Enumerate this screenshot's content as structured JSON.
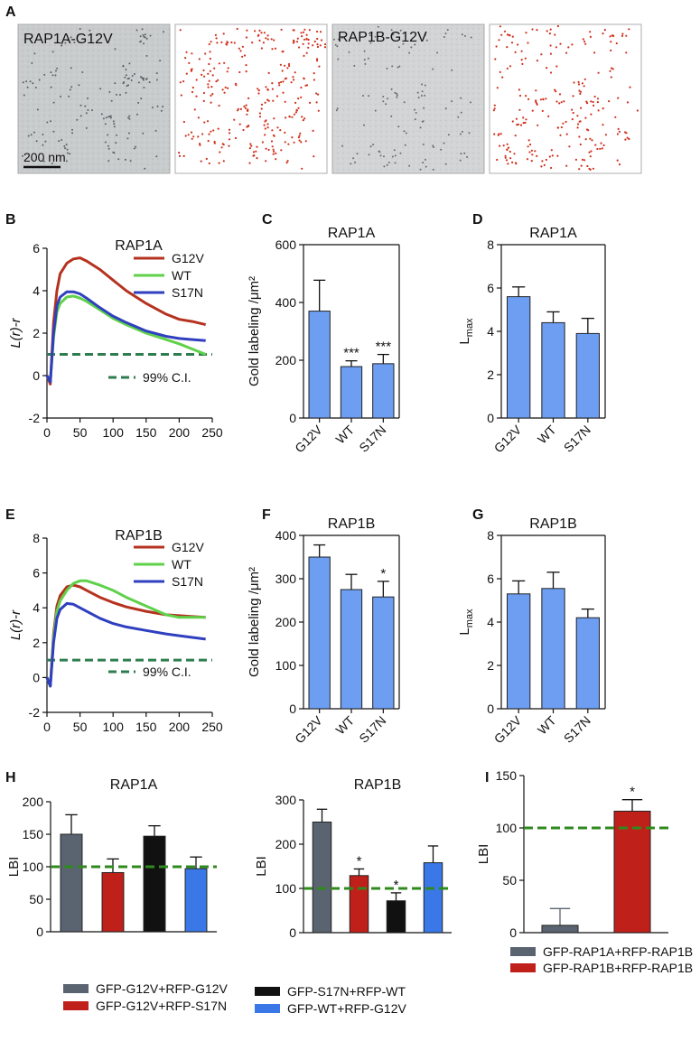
{
  "panels": {
    "A": {
      "letter": "A",
      "image_labels": [
        "RAP1A-G12V",
        "RAP1B-G12V"
      ],
      "scale_bar": "200 nm"
    },
    "B": {
      "letter": "B"
    },
    "C": {
      "letter": "C"
    },
    "D": {
      "letter": "D"
    },
    "E": {
      "letter": "E"
    },
    "F": {
      "letter": "F"
    },
    "G": {
      "letter": "G"
    },
    "H": {
      "letter": "H"
    },
    "I": {
      "letter": "I"
    }
  },
  "colors": {
    "G12V": "#b5321f",
    "WT": "#5fd14a",
    "S17N": "#2f3fbf",
    "ci": "#2e7d4f",
    "bar_blue": "#6d9ef2",
    "gray": "#5a6470",
    "red": "#c0201a",
    "black": "#111111",
    "blue": "#3a78e8",
    "green_dash": "#2f8a1e"
  },
  "chart_data": [
    {
      "id": "B",
      "type": "line",
      "title": "RAP1A",
      "xlabel": "",
      "ylabel": "L(r)-r",
      "xlim": [
        0,
        250
      ],
      "ylim": [
        -2,
        6
      ],
      "xticks": [
        "0",
        "50",
        "100",
        "150",
        "200",
        "250"
      ],
      "yticks": [
        "-2",
        "0",
        "2",
        "4",
        "6"
      ],
      "series": [
        {
          "name": "G12V",
          "x": [
            0,
            5,
            10,
            15,
            20,
            30,
            40,
            50,
            60,
            80,
            100,
            120,
            150,
            180,
            200,
            220,
            240
          ],
          "y": [
            0,
            -0.4,
            2.5,
            4.0,
            4.8,
            5.3,
            5.5,
            5.55,
            5.4,
            5.0,
            4.5,
            4.0,
            3.4,
            2.9,
            2.65,
            2.55,
            2.4
          ]
        },
        {
          "name": "WT",
          "x": [
            0,
            5,
            10,
            15,
            20,
            30,
            40,
            50,
            60,
            80,
            100,
            120,
            150,
            180,
            200,
            220,
            240
          ],
          "y": [
            0,
            -0.3,
            1.8,
            3.0,
            3.4,
            3.7,
            3.75,
            3.65,
            3.5,
            3.1,
            2.7,
            2.4,
            2.0,
            1.7,
            1.5,
            1.25,
            1.0
          ]
        },
        {
          "name": "S17N",
          "x": [
            0,
            5,
            10,
            15,
            20,
            30,
            40,
            50,
            60,
            80,
            100,
            120,
            150,
            180,
            200,
            220,
            240
          ],
          "y": [
            0,
            -0.3,
            2.0,
            3.3,
            3.7,
            3.95,
            3.95,
            3.85,
            3.65,
            3.2,
            2.8,
            2.5,
            2.1,
            1.85,
            1.75,
            1.7,
            1.65
          ]
        }
      ],
      "ci_level": 1,
      "ci_label": "99% C.I."
    },
    {
      "id": "C",
      "type": "bar",
      "title": "RAP1A",
      "ylabel": "Gold labeling /μm²",
      "ylim": [
        0,
        600
      ],
      "yticks": [
        "0",
        "200",
        "400",
        "600"
      ],
      "categories": [
        "G12V",
        "WT",
        "S17N"
      ],
      "values": [
        370,
        178,
        188
      ],
      "errors": [
        107,
        20,
        32
      ],
      "annotations": [
        "",
        "***",
        "***"
      ]
    },
    {
      "id": "D",
      "type": "bar",
      "title": "RAP1A",
      "ylabel": "Lmax",
      "ylim": [
        0,
        8
      ],
      "yticks": [
        "0",
        "2",
        "4",
        "6",
        "8"
      ],
      "categories": [
        "G12V",
        "WT",
        "S17N"
      ],
      "values": [
        5.6,
        4.4,
        3.9
      ],
      "errors": [
        0.45,
        0.5,
        0.7
      ],
      "annotations": [
        "",
        "",
        ""
      ]
    },
    {
      "id": "E",
      "type": "line",
      "title": "RAP1B",
      "xlabel": "",
      "ylabel": "L(r)-r",
      "xlim": [
        0,
        250
      ],
      "ylim": [
        -2,
        8
      ],
      "xticks": [
        "0",
        "50",
        "100",
        "150",
        "200",
        "250"
      ],
      "yticks": [
        "-2",
        "0",
        "2",
        "4",
        "6",
        "8"
      ],
      "series": [
        {
          "name": "G12V",
          "x": [
            0,
            5,
            10,
            15,
            20,
            30,
            40,
            50,
            60,
            80,
            100,
            120,
            150,
            180,
            200,
            220,
            240
          ],
          "y": [
            0,
            -0.5,
            2.5,
            4.1,
            4.7,
            5.2,
            5.3,
            5.2,
            5.0,
            4.6,
            4.3,
            4.05,
            3.8,
            3.6,
            3.55,
            3.5,
            3.45
          ]
        },
        {
          "name": "WT",
          "x": [
            0,
            5,
            10,
            15,
            20,
            30,
            40,
            50,
            60,
            80,
            100,
            120,
            150,
            180,
            200,
            220,
            240
          ],
          "y": [
            0,
            -0.5,
            2.3,
            3.8,
            4.4,
            5.0,
            5.4,
            5.55,
            5.55,
            5.3,
            5.0,
            4.6,
            4.1,
            3.6,
            3.45,
            3.45,
            3.45
          ]
        },
        {
          "name": "S17N",
          "x": [
            0,
            5,
            10,
            15,
            20,
            30,
            40,
            50,
            60,
            80,
            100,
            120,
            150,
            180,
            200,
            220,
            240
          ],
          "y": [
            0,
            -0.5,
            2.0,
            3.4,
            3.9,
            4.25,
            4.2,
            4.0,
            3.8,
            3.4,
            3.1,
            2.9,
            2.7,
            2.5,
            2.4,
            2.3,
            2.2
          ]
        }
      ],
      "ci_level": 1,
      "ci_label": "99% C.I."
    },
    {
      "id": "F",
      "type": "bar",
      "title": "RAP1B",
      "ylabel": "Gold labeling /μm²",
      "ylim": [
        0,
        400
      ],
      "yticks": [
        "0",
        "100",
        "200",
        "300",
        "400"
      ],
      "categories": [
        "G12V",
        "WT",
        "S17N"
      ],
      "values": [
        350,
        275,
        258
      ],
      "errors": [
        28,
        35,
        36
      ],
      "annotations": [
        "",
        "",
        "*"
      ]
    },
    {
      "id": "G",
      "type": "bar",
      "title": "RAP1B",
      "ylabel": "Lmax",
      "ylim": [
        0,
        8
      ],
      "yticks": [
        "0",
        "2",
        "4",
        "6",
        "8"
      ],
      "categories": [
        "G12V",
        "WT",
        "S17N"
      ],
      "values": [
        5.3,
        5.55,
        4.2
      ],
      "errors": [
        0.6,
        0.75,
        0.4
      ],
      "annotations": [
        "",
        "",
        ""
      ]
    },
    {
      "id": "H1",
      "type": "bar",
      "title": "RAP1A",
      "ylabel": "LBI",
      "ylim": [
        0,
        200
      ],
      "yticks": [
        "0",
        "50",
        "100",
        "150",
        "200"
      ],
      "categories": [
        "GFP-G12V+RFP-G12V",
        "GFP-G12V+RFP-S17N",
        "GFP-S17N+RFP-WT",
        "GFP-WT+RFP-G12V"
      ],
      "values": [
        150,
        91,
        147,
        97
      ],
      "errors": [
        30,
        21,
        16,
        18
      ],
      "annotations": [
        "",
        "",
        "",
        ""
      ],
      "reference": 100
    },
    {
      "id": "H2",
      "type": "bar",
      "title": "RAP1B",
      "ylabel": "LBI",
      "ylim": [
        0,
        300
      ],
      "yticks": [
        "0",
        "100",
        "200",
        "300"
      ],
      "categories": [
        "GFP-G12V+RFP-G12V",
        "GFP-G12V+RFP-S17N",
        "GFP-S17N+RFP-WT",
        "GFP-WT+RFP-G12V"
      ],
      "values": [
        250,
        129,
        72,
        158
      ],
      "errors": [
        29,
        15,
        18,
        38
      ],
      "annotations": [
        "",
        "*",
        "*",
        ""
      ],
      "reference": 100
    },
    {
      "id": "I",
      "type": "bar",
      "title": "",
      "ylabel": "LBI",
      "ylim": [
        0,
        150
      ],
      "yticks": [
        "0",
        "50",
        "100",
        "150"
      ],
      "categories": [
        "GFP-RAP1A+RFP-RAP1B",
        "GFP-RAP1B+RFP-RAP1B"
      ],
      "values": [
        7,
        116
      ],
      "errors": [
        16,
        11
      ],
      "annotations": [
        "",
        "*"
      ],
      "reference": 100
    }
  ],
  "legend_H": [
    "GFP-G12V+RFP-G12V",
    "GFP-G12V+RFP-S17N",
    "GFP-S17N+RFP-WT",
    "GFP-WT+RFP-G12V"
  ],
  "legend_I": [
    "GFP-RAP1A+RFP-RAP1B",
    "GFP-RAP1B+RFP-RAP1B"
  ]
}
